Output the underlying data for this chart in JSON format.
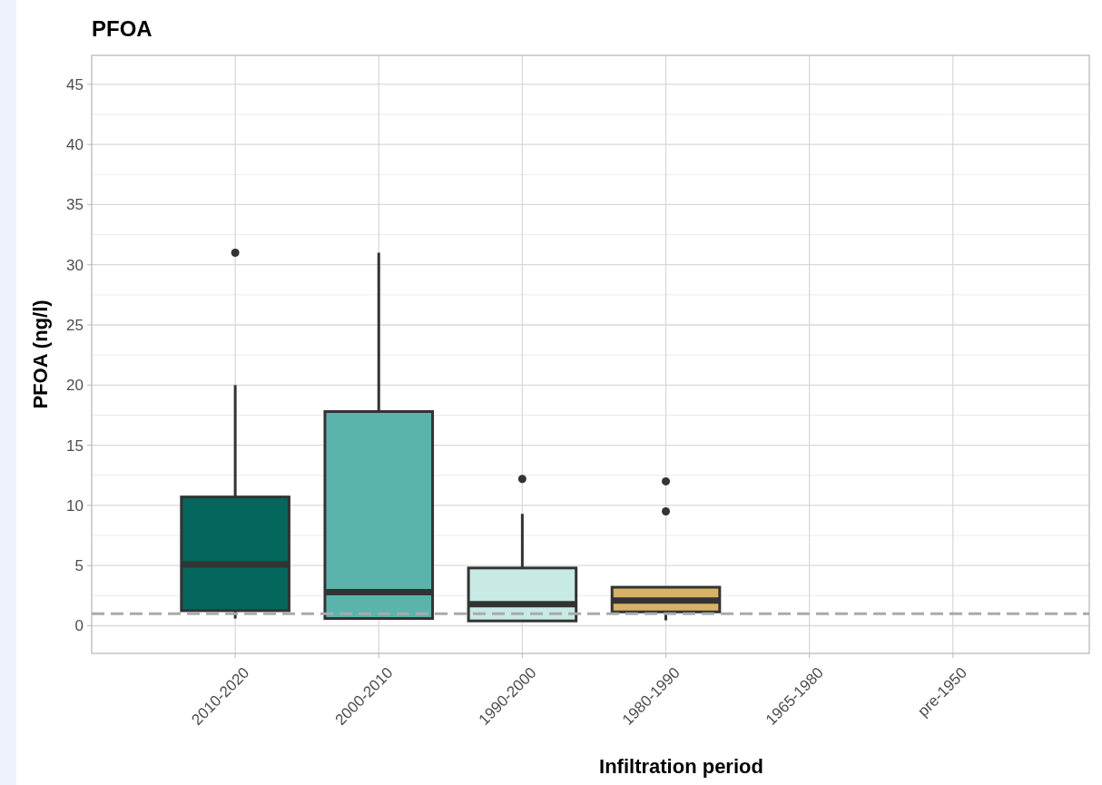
{
  "chart_data": {
    "type": "box",
    "title": "PFOA",
    "xlabel": "Infiltration period",
    "ylabel": "PFOA (ng/l)",
    "categories": [
      "2010-2020",
      "2000-2010",
      "1990-2000",
      "1980-1990",
      "1965-1980",
      "pre-1950"
    ],
    "colors": [
      "#04665c",
      "#5ab4ac",
      "#c7eae5",
      "#d8b365",
      null,
      null
    ],
    "boxes": [
      {
        "low": 0.6,
        "q1": 1.25,
        "median": 5.1,
        "q3": 10.7,
        "high": 20.0,
        "outliers": [
          31.0
        ]
      },
      {
        "low": 0.6,
        "q1": 0.6,
        "median": 2.8,
        "q3": 17.8,
        "high": 31.0
      },
      {
        "low": 0.4,
        "q1": 0.4,
        "median": 1.8,
        "q3": 4.8,
        "high": 9.3,
        "outliers": [
          12.2
        ]
      },
      {
        "low": 0.45,
        "q1": 1.15,
        "median": 2.1,
        "q3": 3.2,
        "high": 3.2,
        "outliers": [
          9.5,
          12.0
        ]
      },
      null,
      null
    ],
    "ylim": [
      -2.3,
      47.4
    ],
    "yticks": [
      0,
      5,
      10,
      15,
      20,
      25,
      30,
      35,
      40,
      45
    ],
    "grid": true,
    "ref_lines": [
      {
        "axis": "y",
        "value": 1,
        "color": "#aaaaaa",
        "line_style": "dashed"
      }
    ]
  }
}
